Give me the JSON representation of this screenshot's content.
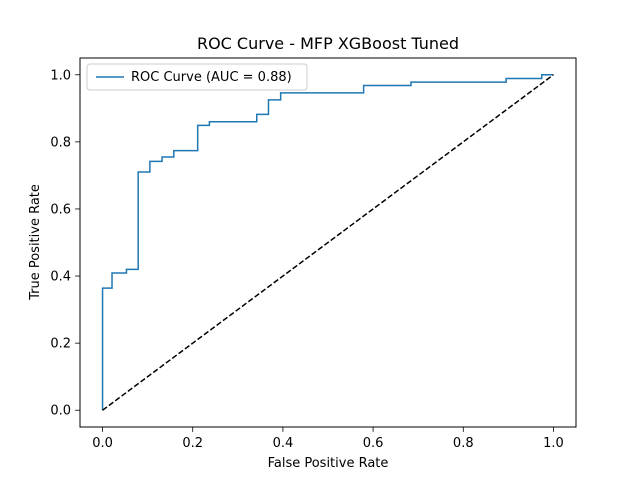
{
  "chart_data": {
    "type": "line",
    "title": "ROC Curve - MFP XGBoost Tuned",
    "xlabel": "False Positive Rate",
    "ylabel": "True Positive Rate",
    "xlim": [
      -0.05,
      1.05
    ],
    "ylim": [
      -0.05,
      1.05
    ],
    "xticks": [
      "0.0",
      "0.2",
      "0.4",
      "0.6",
      "0.8",
      "1.0"
    ],
    "yticks": [
      "0.0",
      "0.2",
      "0.4",
      "0.6",
      "0.8",
      "1.0"
    ],
    "grid": false,
    "legend_position": "upper-left",
    "series": [
      {
        "name": "ROC Curve (AUC = 0.88)",
        "color": "#1f77b4",
        "style": "solid-step",
        "x": [
          0.0,
          0.0,
          0.0,
          0.021,
          0.021,
          0.053,
          0.053,
          0.079,
          0.079,
          0.105,
          0.105,
          0.132,
          0.132,
          0.158,
          0.158,
          0.211,
          0.211,
          0.237,
          0.237,
          0.342,
          0.342,
          0.368,
          0.368,
          0.395,
          0.395,
          0.579,
          0.579,
          0.684,
          0.684,
          0.895,
          0.895,
          0.974,
          0.974,
          1.0
        ],
        "y": [
          0.0,
          0.0,
          0.364,
          0.364,
          0.409,
          0.409,
          0.42,
          0.42,
          0.71,
          0.71,
          0.742,
          0.742,
          0.755,
          0.755,
          0.774,
          0.774,
          0.849,
          0.849,
          0.86,
          0.86,
          0.882,
          0.882,
          0.925,
          0.925,
          0.946,
          0.946,
          0.968,
          0.968,
          0.978,
          0.978,
          0.989,
          0.989,
          1.0,
          1.0
        ]
      },
      {
        "name": "",
        "color": "#000000",
        "style": "dashed",
        "x": [
          0.0,
          1.0
        ],
        "y": [
          0.0,
          1.0
        ]
      }
    ]
  }
}
